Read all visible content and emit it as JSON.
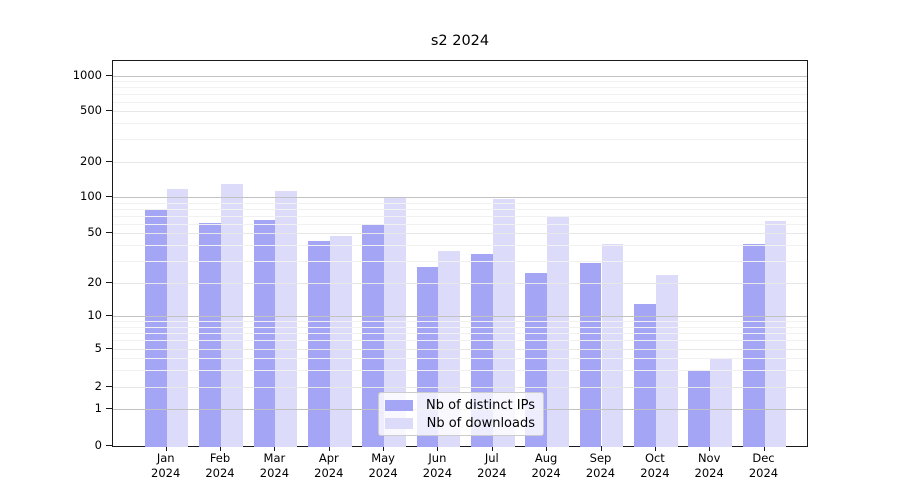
{
  "chart": {
    "title": "s2 2024",
    "legend": {
      "ips_label": "Nb of distinct IPs",
      "downloads_label": "Nb of downloads"
    },
    "colors": {
      "ips": "#a5a5f6",
      "downloads": "#dcdcfa",
      "grid_major": "#c2c2c2",
      "grid_light": "#e7e7e7"
    }
  },
  "chart_data": {
    "type": "bar",
    "title": "s2 2024",
    "categories": [
      "Jan 2024",
      "Feb 2024",
      "Mar 2024",
      "Apr 2024",
      "May 2024",
      "Jun 2024",
      "Jul 2024",
      "Aug 2024",
      "Sep 2024",
      "Oct 2024",
      "Nov 2024",
      "Dec 2024"
    ],
    "months": [
      "Jan",
      "Feb",
      "Mar",
      "Apr",
      "May",
      "Jun",
      "Jul",
      "Aug",
      "Sep",
      "Oct",
      "Nov",
      "Dec"
    ],
    "year": "2024",
    "series": [
      {
        "name": "Nb of distinct IPs",
        "values": [
          78,
          61,
          64,
          43,
          60,
          27,
          34,
          24,
          29,
          13,
          3,
          41
        ]
      },
      {
        "name": "Nb of downloads",
        "values": [
          118,
          130,
          113,
          47,
          101,
          36,
          96,
          69,
          41,
          23,
          4,
          63
        ]
      }
    ],
    "xlabel": "",
    "ylabel": "",
    "yscale": "symlog",
    "y_ticks": [
      0,
      1,
      2,
      5,
      10,
      20,
      50,
      100,
      200,
      500,
      1000
    ],
    "ylim": [
      0,
      1300
    ],
    "grid": true,
    "legend_position": "lower center"
  }
}
